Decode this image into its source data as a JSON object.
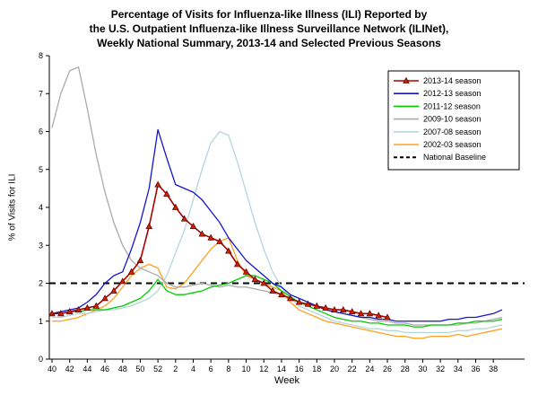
{
  "title": {
    "line1": "Percentage of Visits for Influenza-like Illness (ILI) Reported by",
    "line2": "the U.S. Outpatient Influenza-like Illness Surveillance Network (ILINet),",
    "line3": "Weekly National Summary, 2013-14 and Selected Previous Seasons"
  },
  "chart_data": {
    "type": "line",
    "xlabel": "Week",
    "ylabel": "% of Visits for ILI",
    "ylim": [
      0,
      8
    ],
    "y_ticks": [
      0,
      1,
      2,
      3,
      4,
      5,
      6,
      7,
      8
    ],
    "x_weeks": [
      40,
      41,
      42,
      43,
      44,
      45,
      46,
      47,
      48,
      49,
      50,
      51,
      52,
      1,
      2,
      3,
      4,
      5,
      6,
      7,
      8,
      9,
      10,
      11,
      12,
      13,
      14,
      15,
      16,
      17,
      18,
      19,
      20,
      21,
      22,
      23,
      24,
      25,
      26,
      27,
      28,
      29,
      30,
      31,
      32,
      33,
      34,
      35,
      36,
      37,
      38,
      39
    ],
    "x_tick_labels": [
      "40",
      "42",
      "44",
      "46",
      "48",
      "50",
      "52",
      "2",
      "4",
      "6",
      "8",
      "10",
      "12",
      "14",
      "16",
      "18",
      "20",
      "22",
      "24",
      "26",
      "28",
      "30",
      "32",
      "34",
      "36",
      "38"
    ],
    "grid": false,
    "legend_position": "upper right",
    "baseline": {
      "label": "National Baseline",
      "value": 2,
      "color": "#000000",
      "dashed": true
    },
    "series": [
      {
        "name": "2013-14 season",
        "color": "#aa0000",
        "marker": "triangle",
        "marker_color": "#cc2200",
        "values": [
          1.2,
          1.2,
          1.25,
          1.3,
          1.35,
          1.4,
          1.6,
          1.8,
          2.05,
          2.3,
          2.6,
          3.5,
          4.6,
          4.35,
          4.0,
          3.7,
          3.5,
          3.3,
          3.2,
          3.1,
          2.85,
          2.5,
          2.3,
          2.1,
          2.0,
          1.8,
          1.7,
          1.6,
          1.5,
          1.45,
          1.4,
          1.35,
          1.3,
          1.3,
          1.25,
          1.2,
          1.2,
          1.15,
          1.1,
          null,
          null,
          null,
          null,
          null,
          null,
          null,
          null,
          null,
          null,
          null,
          null,
          null
        ]
      },
      {
        "name": "2012-13 season",
        "color": "#1414cc",
        "values": [
          1.2,
          1.25,
          1.3,
          1.35,
          1.5,
          1.7,
          2.0,
          2.2,
          2.3,
          2.9,
          3.6,
          4.5,
          6.05,
          5.3,
          4.6,
          4.5,
          4.4,
          4.2,
          3.9,
          3.6,
          3.2,
          2.9,
          2.6,
          2.4,
          2.2,
          2.0,
          1.9,
          1.7,
          1.6,
          1.5,
          1.4,
          1.3,
          1.25,
          1.2,
          1.15,
          1.1,
          1.1,
          1.05,
          1.05,
          1.0,
          1.0,
          1.0,
          1.0,
          1.0,
          1.0,
          1.05,
          1.05,
          1.1,
          1.1,
          1.15,
          1.2,
          1.3
        ]
      },
      {
        "name": "2011-12 season",
        "color": "#00cc00",
        "values": [
          1.2,
          1.2,
          1.25,
          1.25,
          1.3,
          1.3,
          1.3,
          1.35,
          1.4,
          1.5,
          1.6,
          1.8,
          2.1,
          1.8,
          1.7,
          1.7,
          1.75,
          1.8,
          1.9,
          1.95,
          2.0,
          2.1,
          2.2,
          2.2,
          2.1,
          2.0,
          1.8,
          1.65,
          1.5,
          1.4,
          1.3,
          1.2,
          1.1,
          1.05,
          1.0,
          1.0,
          0.95,
          0.95,
          0.9,
          0.9,
          0.9,
          0.85,
          0.85,
          0.9,
          0.9,
          0.9,
          0.95,
          0.95,
          1.0,
          1.0,
          1.0,
          1.05
        ]
      },
      {
        "name": "2009-10 season",
        "color": "#aaaaaa",
        "values": [
          6.1,
          7.0,
          7.6,
          7.7,
          6.6,
          5.4,
          4.4,
          3.6,
          3.0,
          2.6,
          2.4,
          2.3,
          2.2,
          2.0,
          1.9,
          1.9,
          1.95,
          2.0,
          1.95,
          1.9,
          1.95,
          1.9,
          1.9,
          1.85,
          1.8,
          1.75,
          1.7,
          1.6,
          1.5,
          1.45,
          1.4,
          1.3,
          1.25,
          1.2,
          1.15,
          1.1,
          1.05,
          1.0,
          1.0,
          0.95,
          0.95,
          0.9,
          0.9,
          0.9,
          0.9,
          0.9,
          0.9,
          0.95,
          0.95,
          1.0,
          1.05,
          1.1
        ]
      },
      {
        "name": "2007-08 season",
        "color": "#b5d6da",
        "values": [
          1.1,
          1.1,
          1.15,
          1.2,
          1.2,
          1.25,
          1.3,
          1.3,
          1.35,
          1.4,
          1.5,
          1.6,
          1.8,
          2.2,
          2.8,
          3.4,
          4.2,
          5.0,
          5.7,
          6.0,
          5.9,
          5.2,
          4.4,
          3.6,
          2.9,
          2.3,
          1.9,
          1.6,
          1.4,
          1.3,
          1.2,
          1.1,
          1.0,
          0.95,
          0.9,
          0.85,
          0.8,
          0.8,
          0.75,
          0.75,
          0.7,
          0.7,
          0.7,
          0.7,
          0.7,
          0.7,
          0.75,
          0.75,
          0.8,
          0.8,
          0.85,
          0.9
        ]
      },
      {
        "name": "2002-03 season",
        "color": "#ffa020",
        "values": [
          1.0,
          1.0,
          1.05,
          1.1,
          1.2,
          1.3,
          1.4,
          1.6,
          1.9,
          2.2,
          2.4,
          2.5,
          2.4,
          1.9,
          1.85,
          2.0,
          2.3,
          2.6,
          2.9,
          3.1,
          3.2,
          2.6,
          2.2,
          2.1,
          2.0,
          1.9,
          1.8,
          1.5,
          1.3,
          1.2,
          1.1,
          1.0,
          0.95,
          0.9,
          0.85,
          0.8,
          0.75,
          0.7,
          0.65,
          0.6,
          0.6,
          0.55,
          0.55,
          0.6,
          0.6,
          0.6,
          0.65,
          0.6,
          0.65,
          0.7,
          0.75,
          0.8
        ]
      }
    ]
  }
}
